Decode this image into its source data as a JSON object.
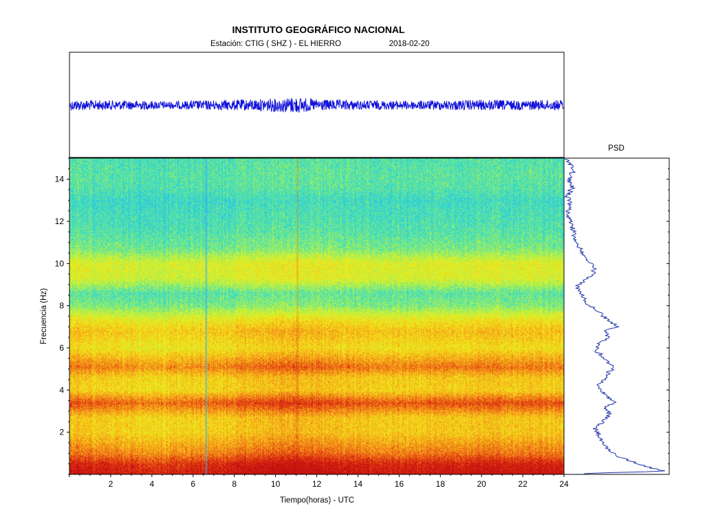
{
  "header": {
    "institution": "INSTITUTO GEOGRÁFICO NACIONAL",
    "station": "Estación:  CTIG ( SHZ ) - EL HIERRO",
    "date": "2018-02-20"
  },
  "colors": {
    "trace": "#1010d8",
    "psd_line": "#1a2ea8",
    "colormap": [
      "#2a8cf0",
      "#29c4e6",
      "#3fe0bf",
      "#a3ef58",
      "#eaf31c",
      "#f8c81a",
      "#f18a18",
      "#e43a12",
      "#c41010"
    ]
  },
  "chart_data": [
    {
      "type": "line",
      "name": "seismogram",
      "xlim": [
        0,
        24
      ],
      "x": [
        0,
        2,
        4,
        5,
        6,
        8,
        10,
        11,
        12,
        14,
        16,
        18,
        20,
        22,
        24
      ],
      "amplitude": [
        0.55,
        0.5,
        0.45,
        0.38,
        0.48,
        0.55,
        0.7,
        0.85,
        0.6,
        0.5,
        0.45,
        0.5,
        0.55,
        0.5,
        0.55
      ],
      "amplitude_units": "relative"
    },
    {
      "type": "heatmap",
      "name": "spectrogram",
      "xlabel": "Tiempo(horas) - UTC",
      "ylabel": "Frecuencia  (Hz)",
      "xlim": [
        0,
        24
      ],
      "ylim": [
        0,
        15
      ],
      "xticks": [
        "2",
        "4",
        "6",
        "8",
        "10",
        "12",
        "14",
        "16",
        "18",
        "20",
        "22",
        "24"
      ],
      "yticks": [
        "2",
        "4",
        "6",
        "8",
        "10",
        "12",
        "14"
      ],
      "frequency_hz": [
        0.1,
        0.5,
        1,
        2,
        2.7,
        3.4,
        4,
        4.6,
        5.1,
        6,
        6.8,
        7.3,
        8,
        8.6,
        9.3,
        10,
        10.7,
        11.5,
        12,
        12.5,
        13,
        13.6,
        14.2,
        15
      ],
      "relative_power": [
        1.0,
        0.95,
        0.78,
        0.62,
        0.62,
        0.85,
        0.6,
        0.62,
        0.78,
        0.56,
        0.64,
        0.55,
        0.34,
        0.28,
        0.48,
        0.5,
        0.33,
        0.27,
        0.25,
        0.24,
        0.22,
        0.27,
        0.28,
        0.26
      ],
      "vertical_features_hours": [
        6.6,
        11.0
      ],
      "time_modulation": {
        "hours": [
          0,
          2,
          4,
          6,
          8,
          10,
          11,
          12,
          14,
          16,
          18,
          20,
          22,
          24
        ],
        "factor": [
          1.0,
          0.98,
          0.93,
          0.95,
          1.0,
          1.06,
          1.09,
          1.04,
          1.0,
          0.98,
          1.0,
          1.02,
          1.0,
          1.0
        ]
      }
    },
    {
      "type": "line",
      "name": "psd",
      "title": "PSD",
      "y_units": "Hz",
      "ylim": [
        0,
        15
      ],
      "frequency_hz": [
        0.05,
        0.15,
        0.3,
        0.5,
        0.8,
        1.2,
        1.6,
        2.0,
        2.2,
        2.4,
        2.6,
        2.8,
        3.0,
        3.2,
        3.4,
        3.5,
        3.7,
        4.0,
        4.3,
        4.6,
        4.9,
        5.1,
        5.3,
        5.6,
        5.9,
        6.2,
        6.5,
        6.8,
        7.0,
        7.2,
        7.5,
        7.8,
        8.0,
        8.3,
        8.6,
        8.9,
        9.2,
        9.5,
        9.8,
        10.1,
        10.4,
        10.8,
        11.2,
        11.6,
        12.0,
        12.4,
        12.8,
        13.2,
        13.6,
        14.0,
        14.4,
        14.8,
        15.0
      ],
      "relative_power": [
        0.2,
        0.98,
        0.85,
        0.72,
        0.55,
        0.42,
        0.36,
        0.33,
        0.3,
        0.36,
        0.4,
        0.44,
        0.42,
        0.38,
        0.52,
        0.48,
        0.42,
        0.36,
        0.34,
        0.4,
        0.44,
        0.5,
        0.42,
        0.38,
        0.3,
        0.34,
        0.42,
        0.4,
        0.52,
        0.46,
        0.38,
        0.32,
        0.24,
        0.2,
        0.16,
        0.12,
        0.2,
        0.28,
        0.3,
        0.24,
        0.2,
        0.14,
        0.1,
        0.09,
        0.06,
        0.04,
        0.06,
        0.03,
        0.08,
        0.05,
        0.09,
        0.06,
        0.0
      ]
    }
  ]
}
